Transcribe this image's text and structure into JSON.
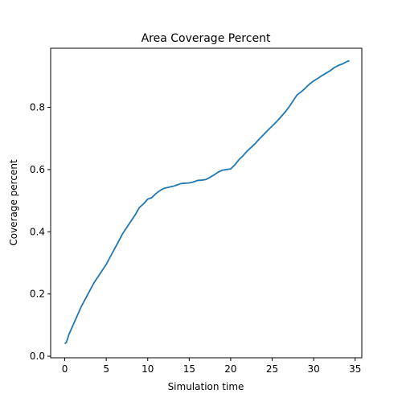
{
  "chart_data": {
    "type": "line",
    "title": "Area Coverage Percent",
    "xlabel": "Simulation time",
    "ylabel": "Coverage percent",
    "xlim": [
      -1.7,
      35.8
    ],
    "ylim": [
      -0.005,
      0.99
    ],
    "xticks": [
      0,
      5,
      10,
      15,
      20,
      25,
      30,
      35
    ],
    "yticks": [
      0.0,
      0.2,
      0.4,
      0.6,
      0.8
    ],
    "ytick_labels": [
      "0.0",
      "0.2",
      "0.4",
      "0.6",
      "0.8"
    ],
    "grid": false,
    "series": [
      {
        "color": "#1f77b4",
        "x": [
          0,
          0.2,
          0.5,
          1,
          1.5,
          2,
          2.5,
          3,
          3.5,
          4,
          4.5,
          5,
          5.5,
          6,
          6.5,
          7,
          7.5,
          8,
          8.5,
          9,
          9.5,
          10,
          10.5,
          11,
          11.5,
          12,
          12.5,
          13,
          13.5,
          14,
          14.5,
          15,
          15.5,
          16,
          16.5,
          17,
          17.5,
          18,
          18.5,
          19,
          19.5,
          20,
          20.5,
          21,
          21.5,
          22,
          22.5,
          23,
          23.5,
          24,
          24.5,
          25,
          25.5,
          26,
          26.5,
          27,
          27.5,
          28,
          28.5,
          29,
          29.5,
          30,
          30.5,
          31,
          31.5,
          32,
          32.5,
          33,
          33.5,
          34,
          34.3
        ],
        "y": [
          0.04,
          0.045,
          0.07,
          0.1,
          0.13,
          0.16,
          0.185,
          0.21,
          0.235,
          0.255,
          0.275,
          0.295,
          0.32,
          0.345,
          0.37,
          0.395,
          0.415,
          0.435,
          0.455,
          0.478,
          0.49,
          0.505,
          0.51,
          0.523,
          0.533,
          0.54,
          0.543,
          0.546,
          0.55,
          0.555,
          0.556,
          0.557,
          0.56,
          0.565,
          0.566,
          0.568,
          0.575,
          0.583,
          0.592,
          0.598,
          0.6,
          0.602,
          0.615,
          0.632,
          0.645,
          0.66,
          0.672,
          0.685,
          0.7,
          0.713,
          0.727,
          0.74,
          0.753,
          0.768,
          0.783,
          0.8,
          0.82,
          0.84,
          0.85,
          0.862,
          0.875,
          0.885,
          0.893,
          0.902,
          0.91,
          0.918,
          0.928,
          0.935,
          0.94,
          0.947,
          0.95
        ]
      }
    ]
  }
}
